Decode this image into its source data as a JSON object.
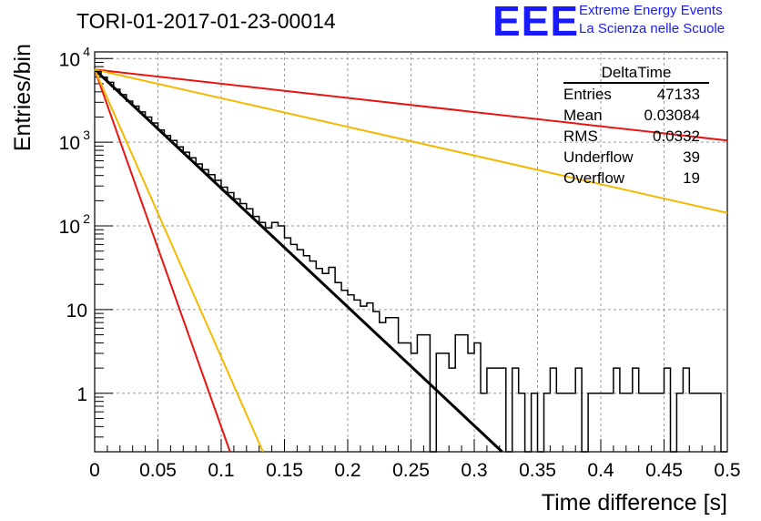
{
  "title": "TORI-01-2017-01-23-00014",
  "logo": {
    "mark": "EEE",
    "line1": "Extreme Energy Events",
    "line2": "La Scienza nelle Scuole",
    "color": "#1a1aff"
  },
  "stats": {
    "title": "DeltaTime",
    "rows": [
      {
        "label": "Entries",
        "value": "47133"
      },
      {
        "label": "Mean",
        "value": "0.03084"
      },
      {
        "label": "RMS",
        "value": "0.0332"
      },
      {
        "label": "Underflow",
        "value": "39"
      },
      {
        "label": "Overflow",
        "value": "19"
      }
    ]
  },
  "chart_data": {
    "type": "line",
    "title": "TORI-01-2017-01-23-00014",
    "xlabel": "Time difference [s]",
    "ylabel": "Entries/bin",
    "xlim": [
      0,
      0.5
    ],
    "ylim": [
      0.2,
      12000
    ],
    "ylog": true,
    "grid": true,
    "x_ticks": [
      "0",
      "0.05",
      "0.1",
      "0.15",
      "0.2",
      "0.25",
      "0.3",
      "0.35",
      "0.4",
      "0.45",
      "0.5"
    ],
    "y_ticks": [
      {
        "value": 1,
        "base": "1",
        "exp": ""
      },
      {
        "value": 10,
        "base": "10",
        "exp": ""
      },
      {
        "value": 100,
        "base": "10",
        "exp": "2"
      },
      {
        "value": 1000,
        "base": "10",
        "exp": "3"
      },
      {
        "value": 10000,
        "base": "10",
        "exp": "4"
      }
    ],
    "histogram": {
      "bin_width": 0.005,
      "color": "#000000",
      "values": [
        7000,
        6000,
        5200,
        4300,
        3700,
        3100,
        2700,
        2300,
        2000,
        1700,
        1400,
        1200,
        1050,
        880,
        760,
        650,
        550,
        470,
        410,
        350,
        290,
        250,
        210,
        185,
        160,
        130,
        110,
        95,
        110,
        100,
        72,
        60,
        52,
        44,
        38,
        31,
        27,
        32,
        21,
        17,
        15,
        13,
        11,
        12,
        9.5,
        7,
        8,
        8,
        4,
        4,
        3,
        5,
        5,
        0.1,
        3,
        3,
        2,
        5,
        5,
        3,
        4,
        1,
        2,
        2,
        2,
        0.1,
        2,
        1,
        0.1,
        1,
        0.1,
        1,
        2,
        1,
        1,
        1,
        2,
        0.1,
        1,
        1,
        1,
        1,
        2,
        1,
        1,
        2,
        1,
        1,
        1,
        1,
        2,
        0.1,
        1,
        2,
        1,
        1,
        1,
        1,
        1,
        0.1
      ]
    },
    "fit_lines": [
      {
        "color": "#000000",
        "width": 3,
        "x": [
          0,
          0.322
        ],
        "y": [
          7400,
          0.2
        ]
      },
      {
        "color": "#e8140f",
        "width": 2,
        "x": [
          0,
          0.107
        ],
        "y": [
          7400,
          0.2
        ]
      },
      {
        "color": "#f5b800",
        "width": 2,
        "x": [
          0,
          0.133
        ],
        "y": [
          7400,
          0.2
        ]
      },
      {
        "color": "#e8140f",
        "width": 2,
        "x": [
          0,
          0.5
        ],
        "y": [
          7400,
          1050
        ]
      },
      {
        "color": "#f5b800",
        "width": 2,
        "x": [
          0,
          0.5
        ],
        "y": [
          7400,
          143
        ]
      }
    ]
  }
}
